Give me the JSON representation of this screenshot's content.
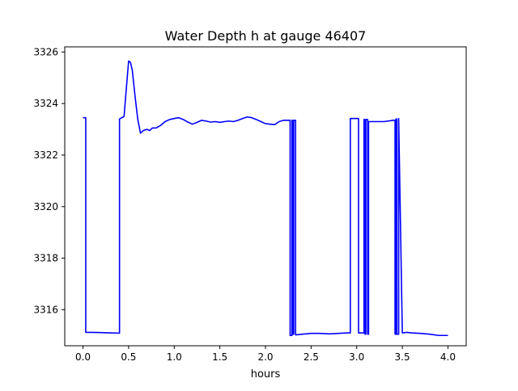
{
  "chart_data": {
    "type": "line",
    "title": "Water Depth h at gauge 46407",
    "xlabel": "hours",
    "ylabel": "",
    "xlim": [
      -0.2,
      4.2
    ],
    "ylim": [
      3314.6,
      3326.2
    ],
    "xticks": [
      0.0,
      0.5,
      1.0,
      1.5,
      2.0,
      2.5,
      3.0,
      3.5,
      4.0
    ],
    "xtick_labels": [
      "0.0",
      "0.5",
      "1.0",
      "1.5",
      "2.0",
      "2.5",
      "3.0",
      "3.5",
      "4.0"
    ],
    "yticks": [
      3316,
      3318,
      3320,
      3322,
      3324,
      3326
    ],
    "ytick_labels": [
      "3316",
      "3318",
      "3320",
      "3322",
      "3324",
      "3326"
    ],
    "grid": false,
    "legend": false,
    "series": [
      {
        "color": "#0000ff",
        "x": [
          0.0,
          0.03,
          0.03,
          0.1,
          0.2,
          0.3,
          0.4,
          0.4,
          0.45,
          0.48,
          0.5,
          0.52,
          0.54,
          0.57,
          0.6,
          0.63,
          0.66,
          0.7,
          0.73,
          0.76,
          0.8,
          0.85,
          0.9,
          0.95,
          1.0,
          1.05,
          1.1,
          1.15,
          1.2,
          1.25,
          1.3,
          1.35,
          1.4,
          1.45,
          1.5,
          1.55,
          1.6,
          1.65,
          1.7,
          1.75,
          1.8,
          1.85,
          1.9,
          1.95,
          2.0,
          2.05,
          2.1,
          2.15,
          2.2,
          2.25,
          2.27,
          2.27,
          2.29,
          2.29,
          2.3,
          2.3,
          2.31,
          2.31,
          2.33,
          2.33,
          2.4,
          2.5,
          2.6,
          2.7,
          2.8,
          2.9,
          2.93,
          2.93,
          3.0,
          3.02,
          3.02,
          3.08,
          3.08,
          3.09,
          3.09,
          3.1,
          3.1,
          3.12,
          3.12,
          3.13,
          3.13,
          3.2,
          3.3,
          3.4,
          3.42,
          3.42,
          3.43,
          3.43,
          3.44,
          3.44,
          3.46,
          3.46,
          3.5,
          3.55,
          3.6,
          3.7,
          3.8,
          3.9,
          4.0
        ],
        "y": [
          3323.45,
          3323.45,
          3315.12,
          3315.12,
          3315.11,
          3315.1,
          3315.09,
          3323.4,
          3323.5,
          3324.8,
          3325.65,
          3325.6,
          3325.3,
          3324.3,
          3323.4,
          3322.85,
          3322.95,
          3323.0,
          3322.95,
          3323.05,
          3323.05,
          3323.15,
          3323.3,
          3323.38,
          3323.42,
          3323.45,
          3323.38,
          3323.28,
          3323.2,
          3323.27,
          3323.35,
          3323.32,
          3323.28,
          3323.3,
          3323.27,
          3323.3,
          3323.32,
          3323.3,
          3323.35,
          3323.42,
          3323.48,
          3323.45,
          3323.38,
          3323.3,
          3323.22,
          3323.2,
          3323.18,
          3323.3,
          3323.35,
          3323.35,
          3323.35,
          3315.0,
          3315.0,
          3323.35,
          3323.35,
          3315.05,
          3315.05,
          3323.35,
          3323.35,
          3315.02,
          3315.05,
          3315.08,
          3315.08,
          3315.06,
          3315.08,
          3315.1,
          3315.1,
          3323.42,
          3323.42,
          3323.42,
          3315.1,
          3315.1,
          3323.38,
          3323.38,
          3315.05,
          3315.05,
          3323.38,
          3323.38,
          3315.05,
          3315.05,
          3323.3,
          3323.3,
          3323.3,
          3323.35,
          3323.35,
          3315.05,
          3315.05,
          3323.4,
          3323.4,
          3315.05,
          3315.05,
          3323.42,
          3315.1,
          3315.12,
          3315.1,
          3315.08,
          3315.05,
          3315.0,
          3315.0
        ]
      }
    ]
  }
}
